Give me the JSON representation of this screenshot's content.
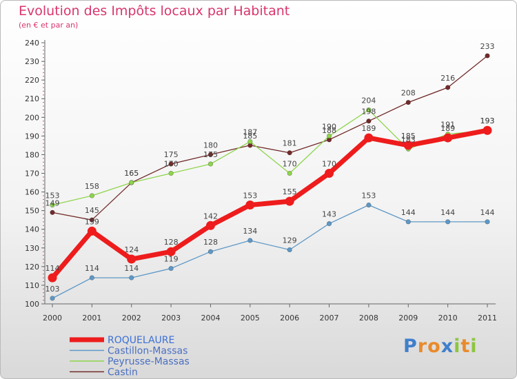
{
  "chart_data": {
    "type": "line",
    "title": "Evolution des Impôts locaux par Habitant",
    "subtitle": "(en € et par an)",
    "xlabel": "",
    "ylabel": "",
    "x": [
      "2000",
      "2001",
      "2002",
      "2003",
      "2004",
      "2005",
      "2006",
      "2007",
      "2008",
      "2009",
      "2010",
      "2011"
    ],
    "ylim": [
      100,
      240
    ],
    "yticks": [
      100,
      110,
      120,
      130,
      140,
      150,
      160,
      170,
      180,
      190,
      200,
      210,
      220,
      230,
      240
    ],
    "grid": false,
    "legend_position": "bottom-left",
    "series": [
      {
        "name": "Castin",
        "color": "#722a2a",
        "values": [
          149,
          145,
          165,
          175,
          180,
          185,
          181,
          188,
          198,
          208,
          216,
          233
        ],
        "labels": [
          "149",
          "145",
          "165",
          "175",
          "180",
          "185",
          "181",
          "188",
          "198",
          "208",
          "216",
          "233"
        ]
      },
      {
        "name": "Peyrusse-Massas",
        "color": "#8ed44c",
        "values": [
          153,
          158,
          165,
          170,
          175,
          187,
          170,
          190,
          204,
          183,
          191,
          193
        ],
        "labels": [
          "153",
          "158",
          "165",
          "170",
          "175",
          "187",
          "170",
          "190",
          "204",
          "183",
          "191",
          "193"
        ]
      },
      {
        "name": "Castillon-Massas",
        "color": "#5e98c6",
        "values": [
          103,
          114,
          114,
          119,
          128,
          134,
          129,
          143,
          153,
          144,
          144,
          144
        ],
        "labels": [
          "103",
          "114",
          "114",
          "119",
          "128",
          "134",
          "129",
          "143",
          "153",
          "144",
          "144",
          "144"
        ]
      },
      {
        "name": "ROQUELAURE",
        "color": "#ee1c1c",
        "values": [
          114,
          139,
          124,
          128,
          142,
          153,
          155,
          170,
          189,
          185,
          189,
          193
        ],
        "labels": [
          "114",
          "139",
          "124",
          "128",
          "142",
          "153",
          "155",
          "170",
          "189",
          "185",
          "189",
          "193"
        ]
      }
    ],
    "legend": [
      "ROQUELAURE",
      "Castillon-Massas",
      "Peyrusse-Massas",
      "Castin"
    ]
  },
  "logo": {
    "letters": [
      "P",
      "r",
      "o",
      "x",
      "i",
      "t",
      "i"
    ],
    "colors": [
      "#3f7fcc",
      "#e98b2a",
      "#e98b2a",
      "#3f7fcc",
      "#8cc63f",
      "#e98b2a",
      "#8cc63f"
    ]
  }
}
